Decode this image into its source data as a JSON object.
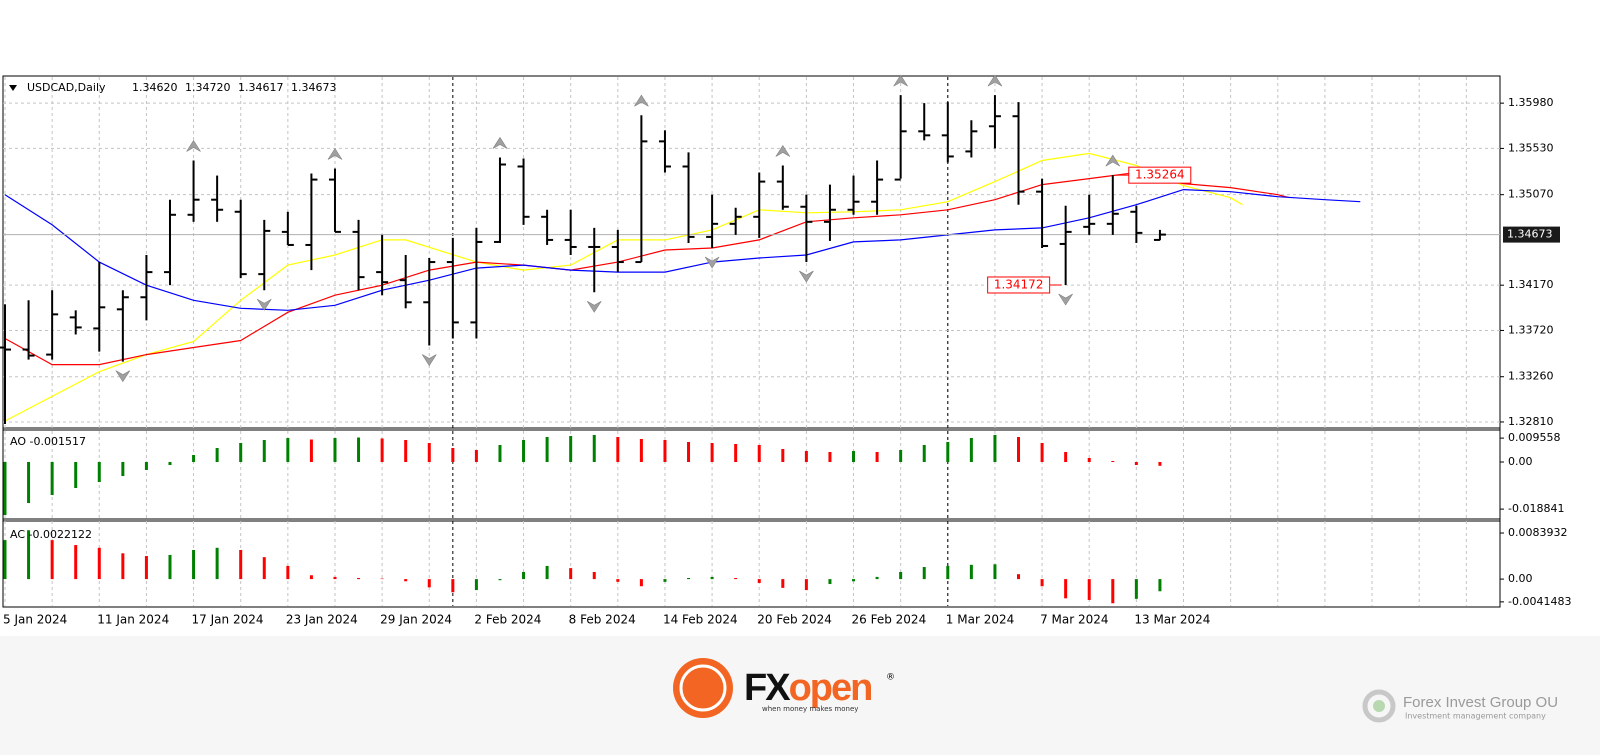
{
  "chart_data": [
    {
      "type": "ohlc",
      "header_title": "USDCAD,Daily",
      "header_labels": [
        "1.34620",
        "1.34720",
        "1.34617",
        "1.34673"
      ],
      "categories": [
        "5 Jan 2024",
        null,
        null,
        null,
        "11 Jan 2024",
        null,
        null,
        null,
        "17 Jan 2024",
        null,
        null,
        null,
        "23 Jan 2024",
        null,
        null,
        null,
        "29 Jan 2024",
        null,
        null,
        null,
        "2 Feb 2024",
        null,
        null,
        null,
        "8 Feb 2024",
        null,
        null,
        null,
        "14 Feb 2024",
        null,
        null,
        null,
        "20 Feb 2024",
        null,
        null,
        null,
        "26 Feb 2024",
        null,
        null,
        null,
        "1 Mar 2024",
        null,
        null,
        null,
        "7 Mar 2024",
        null,
        null,
        null,
        "13 Mar 2024",
        null
      ],
      "open": [
        1.3355,
        1.3353,
        1.3348,
        1.3385,
        1.3374,
        1.3393,
        1.3405,
        1.343,
        1.3487,
        1.3502,
        1.349,
        1.3428,
        1.347,
        1.3457,
        1.3522,
        1.347,
        1.343,
        1.3422,
        1.34,
        1.344,
        1.338,
        1.346,
        1.3535,
        1.3485,
        1.3462,
        1.3455,
        1.3455,
        1.344,
        1.356,
        1.3535,
        1.3465,
        1.3478,
        1.3485,
        1.352,
        1.3495,
        1.348,
        1.3492,
        1.35,
        1.3522,
        1.357,
        1.3566,
        1.355,
        1.3575,
        1.3585,
        1.351,
        1.3458,
        1.3475,
        1.3478,
        1.349,
        1.3462
      ],
      "high": [
        1.3398,
        1.3402,
        1.3412,
        1.3392,
        1.344,
        1.3412,
        1.3447,
        1.3502,
        1.3541,
        1.3526,
        1.3502,
        1.3482,
        1.349,
        1.3528,
        1.3533,
        1.3482,
        1.3467,
        1.3447,
        1.3444,
        1.3464,
        1.3474,
        1.3544,
        1.3543,
        1.3492,
        1.3492,
        1.3474,
        1.3472,
        1.3586,
        1.3571,
        1.3549,
        1.3507,
        1.3494,
        1.3529,
        1.3536,
        1.3507,
        1.3517,
        1.3526,
        1.3541,
        1.3606,
        1.3598,
        1.3599,
        1.3581,
        1.3606,
        1.3599,
        1.3523,
        1.3496,
        1.3507,
        1.35264,
        1.3496,
        1.3472
      ],
      "low": [
        1.3279,
        1.3343,
        1.3343,
        1.3368,
        1.3351,
        1.3341,
        1.3382,
        1.3417,
        1.348,
        1.348,
        1.3424,
        1.3412,
        1.3457,
        1.3432,
        1.347,
        1.3412,
        1.3407,
        1.3394,
        1.3357,
        1.3364,
        1.3364,
        1.3459,
        1.3477,
        1.3457,
        1.3447,
        1.341,
        1.343,
        1.344,
        1.3529,
        1.3459,
        1.3454,
        1.3467,
        1.3464,
        1.3492,
        1.344,
        1.3461,
        1.3487,
        1.3487,
        1.3523,
        1.3561,
        1.3539,
        1.3544,
        1.3553,
        1.3497,
        1.3454,
        1.34172,
        1.3467,
        1.3467,
        1.3459,
        1.34617
      ],
      "close": [
        1.3353,
        1.3347,
        1.3388,
        1.3375,
        1.3395,
        1.3405,
        1.343,
        1.3487,
        1.3502,
        1.3492,
        1.3428,
        1.3471,
        1.3457,
        1.3522,
        1.347,
        1.3425,
        1.342,
        1.34,
        1.344,
        1.338,
        1.346,
        1.3537,
        1.3485,
        1.3462,
        1.3455,
        1.3455,
        1.344,
        1.356,
        1.3535,
        1.3465,
        1.3478,
        1.3485,
        1.352,
        1.3495,
        1.348,
        1.3492,
        1.35,
        1.3522,
        1.357,
        1.3566,
        1.3545,
        1.357,
        1.3585,
        1.351,
        1.3456,
        1.347,
        1.3478,
        1.3488,
        1.3469,
        1.34673
      ],
      "color": "#000000",
      "series": [
        {
          "color": "#ffff00",
          "x": [
            0,
            4,
            6,
            8,
            10,
            12,
            14,
            16,
            17,
            20,
            22,
            24,
            26,
            28,
            30,
            32,
            34,
            36,
            38,
            40,
            42,
            44,
            46,
            48,
            50,
            52,
            52.5
          ],
          "values": [
            1.3282,
            1.3331,
            1.3348,
            1.3361,
            1.3402,
            1.3437,
            1.3447,
            1.3462,
            1.3462,
            1.344,
            1.3432,
            1.3437,
            1.3462,
            1.3462,
            1.3472,
            1.3492,
            1.3489,
            1.349,
            1.3492,
            1.35,
            1.352,
            1.3541,
            1.3548,
            1.3536,
            1.3516,
            1.3504,
            1.3497
          ]
        },
        {
          "color": "#ff0000",
          "x": [
            0,
            2,
            4,
            6,
            8,
            10,
            12,
            14,
            16,
            18,
            20,
            22,
            24,
            26,
            28,
            30,
            32,
            34,
            36,
            38,
            40,
            42,
            44,
            46,
            48,
            50,
            52,
            54,
            54.5
          ],
          "values": [
            1.3364,
            1.3338,
            1.3338,
            1.3348,
            1.3355,
            1.3362,
            1.339,
            1.3407,
            1.3417,
            1.3432,
            1.344,
            1.3437,
            1.3432,
            1.344,
            1.3452,
            1.3454,
            1.3462,
            1.348,
            1.3484,
            1.3487,
            1.3492,
            1.3502,
            1.3517,
            1.3523,
            1.3529,
            1.3518,
            1.3514,
            1.3507,
            1.3504
          ]
        },
        {
          "color": "#0000ff",
          "x": [
            0,
            2,
            4,
            6,
            8,
            10,
            12,
            14,
            16,
            18,
            20,
            22,
            24,
            26,
            28,
            30,
            32,
            34,
            36,
            38,
            40,
            42,
            44,
            46,
            48,
            50,
            52,
            54,
            56,
            57.5
          ],
          "values": [
            1.3507,
            1.3477,
            1.344,
            1.3417,
            1.3402,
            1.3394,
            1.3392,
            1.3397,
            1.3412,
            1.3422,
            1.3434,
            1.3437,
            1.3432,
            1.343,
            1.343,
            1.344,
            1.3444,
            1.3447,
            1.346,
            1.3462,
            1.3467,
            1.3472,
            1.3474,
            1.3484,
            1.3497,
            1.3512,
            1.351,
            1.3505,
            1.3502,
            1.35
          ]
        }
      ],
      "fractals_up": [
        8,
        14,
        21,
        27,
        33,
        38,
        42,
        47
      ],
      "fractals_down": [
        5,
        11,
        18,
        25,
        30,
        34,
        45
      ],
      "fractal_color": "#a0a0a0",
      "separators": [
        19,
        40
      ],
      "annotations": [
        {
          "value": 1.35264,
          "label": "1.35264",
          "bar": 47,
          "side": "right"
        },
        {
          "value": 1.34172,
          "label": "1.34172",
          "bar": 45,
          "side": "left"
        }
      ],
      "ylim": [
        1.3275,
        1.3624
      ],
      "yticks": [
        {
          "value": 1.3598,
          "label": "1.35980"
        },
        {
          "value": 1.3553,
          "label": "1.35530"
        },
        {
          "value": 1.3507,
          "label": "1.35070"
        },
        {
          "value": 1.3417,
          "label": "1.34170"
        },
        {
          "value": 1.3372,
          "label": "1.33720"
        },
        {
          "value": 1.3326,
          "label": "1.33260"
        },
        {
          "value": 1.3281,
          "label": "1.32810"
        }
      ],
      "grid": true
    },
    {
      "type": "bar",
      "title": "AO",
      "value_label": "-0.001517",
      "up_color": "#008000",
      "down_color": "#ff0000",
      "values": [
        -0.0212,
        -0.0164,
        -0.0132,
        -0.0104,
        -0.008,
        -0.0056,
        -0.0032,
        -0.0012,
        0.0028,
        0.0056,
        0.0076,
        0.0088,
        0.0096,
        0.009,
        0.0096,
        0.0098,
        0.0094,
        0.0088,
        0.0076,
        0.0056,
        0.0048,
        0.0068,
        0.0088,
        0.01,
        0.0104,
        0.0108,
        0.01,
        0.0092,
        0.0088,
        0.008,
        0.0076,
        0.0072,
        0.0068,
        0.0052,
        0.0044,
        0.004,
        0.0044,
        0.004,
        0.0048,
        0.0068,
        0.008,
        0.0096,
        0.0108,
        0.01,
        0.0076,
        0.004,
        0.0016,
        0.0004,
        -0.0012,
        -0.001517
      ],
      "ylim": [
        -0.0224,
        0.0128
      ],
      "yticks": [
        0.009558,
        {
          "value": 0,
          "label": "0.00"
        },
        -0.018841
      ]
    },
    {
      "type": "bar",
      "title": "AC",
      "value_label": "-0.0022122",
      "up_color": "#008000",
      "down_color": "#ff0000",
      "values": [
        0.0071,
        0.0089,
        0.0071,
        0.0062,
        0.0057,
        0.0047,
        0.0042,
        0.0044,
        0.0053,
        0.0057,
        0.0053,
        0.004,
        0.0024,
        0.0007,
        0.0004,
        0.0002,
        0.0001,
        -0.0004,
        -0.0015,
        -0.0024,
        -0.002,
        -0.0002,
        0.0013,
        0.0024,
        0.002,
        0.0013,
        -0.0005,
        -0.0013,
        -0.0005,
        0.0002,
        0.0004,
        0.0002,
        -0.0007,
        -0.0016,
        -0.002,
        -0.0009,
        -0.0004,
        0.0004,
        0.0013,
        0.0022,
        0.0024,
        0.0026,
        0.0027,
        0.0009,
        -0.0013,
        -0.0035,
        -0.0038,
        -0.0044,
        -0.0036,
        -0.0022122
      ],
      "ylim": [
        -0.0049,
        0.0104
      ],
      "yticks": [
        0.0083932,
        {
          "value": 0,
          "label": "0.00"
        },
        -0.0041483
      ]
    }
  ],
  "footer": {
    "brand_prefix": "FX",
    "brand_suffix": "open",
    "registered": "®",
    "tagline": "when money makes money",
    "partner": "Forex Invest Group OU",
    "partner_tagline": "Investment management company"
  }
}
